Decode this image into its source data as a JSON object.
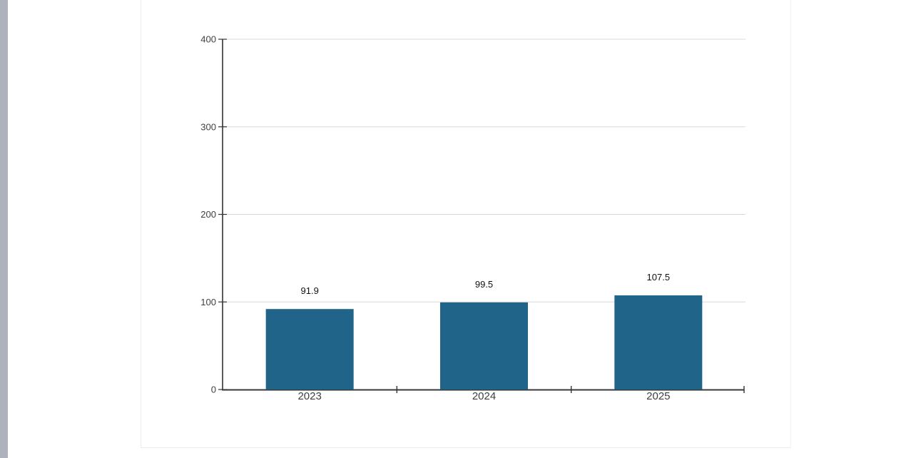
{
  "page": {
    "background": "#ffffff",
    "scroll_strip_color": "#adb2bc",
    "card_border_color": "#ebebeb"
  },
  "chart_data": {
    "type": "bar",
    "title": "",
    "xlabel": "",
    "ylabel": "",
    "categories": [
      "2023",
      "2024",
      "2025"
    ],
    "values": [
      91.9,
      99.5,
      107.5
    ],
    "value_labels": [
      "91.9",
      "99.5",
      "107.5"
    ],
    "ylim": [
      0,
      400
    ],
    "yticks": [
      0,
      100,
      200,
      300,
      400
    ],
    "ytick_labels": [
      "0",
      "100",
      "200",
      "300",
      "400"
    ],
    "grid": true,
    "legend": "none",
    "bar_color": "#20648a",
    "gridline_color": "#d8d8d8",
    "axis_color": "#333333",
    "tick_label_color": "#3f3f3f",
    "value_label_color": "#111111"
  }
}
